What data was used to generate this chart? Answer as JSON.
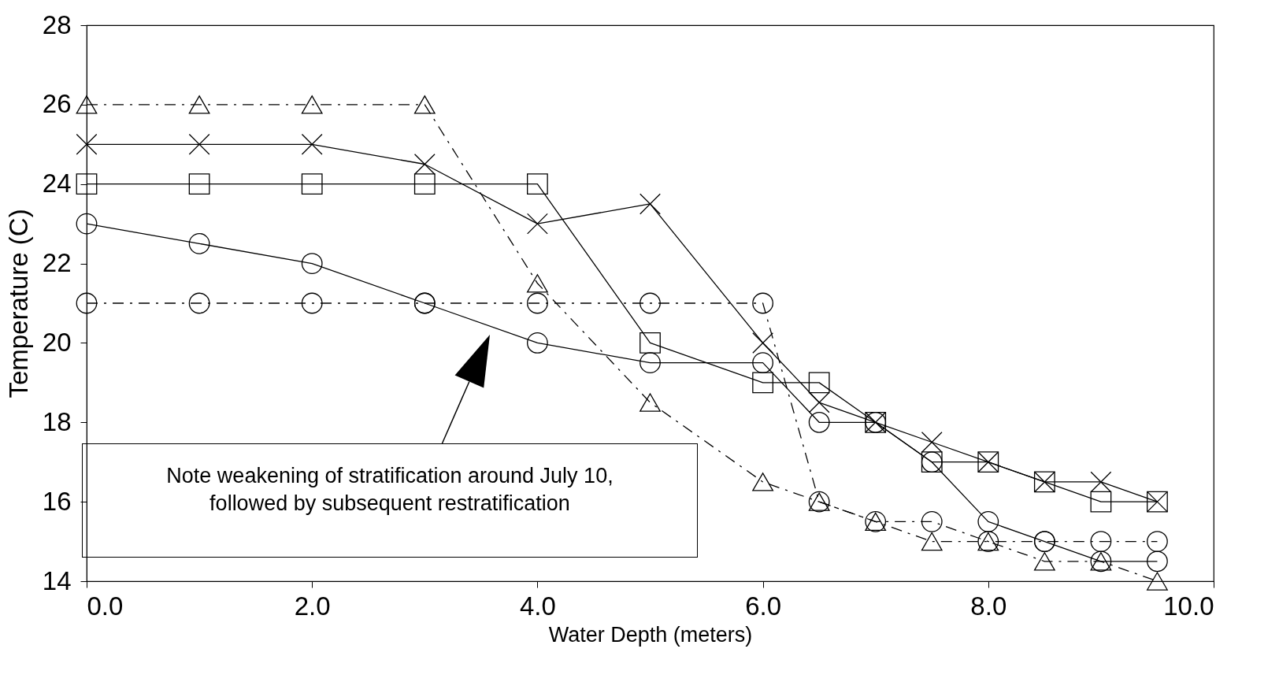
{
  "chart_data": {
    "type": "line",
    "xlabel": "Water Depth (meters)",
    "ylabel": "Temperature (C)",
    "x": [
      0,
      1,
      2,
      3,
      4,
      5,
      6,
      6.5,
      7,
      7.5,
      8,
      8.5,
      9,
      9.5
    ],
    "xlim": [
      0,
      10
    ],
    "xticks": [
      {
        "value": 0,
        "label": "0.0"
      },
      {
        "value": 2,
        "label": "2.0"
      },
      {
        "value": 4,
        "label": "4.0"
      },
      {
        "value": 6,
        "label": "6.0"
      },
      {
        "value": 8,
        "label": "8.0"
      },
      {
        "value": 10,
        "label": "10.0"
      }
    ],
    "ylim": [
      14,
      28
    ],
    "yticks": [
      14,
      16,
      18,
      20,
      22,
      24,
      26,
      28
    ],
    "grid": false,
    "series": [
      {
        "color": "#000000",
        "marker": "triangle",
        "line_style": "dashed",
        "values": [
          26,
          26,
          26,
          26,
          21.5,
          18.5,
          16.5,
          16,
          15.5,
          15,
          15,
          14.5,
          14.5,
          14
        ]
      },
      {
        "color": "#000000",
        "marker": "circle",
        "line_style": "dashed",
        "values": [
          21,
          21,
          21,
          21,
          21,
          21,
          21,
          16,
          15.5,
          15.5,
          15,
          15,
          15,
          15
        ]
      },
      {
        "color": "#000000",
        "marker": "square",
        "line_style": "solid",
        "values": [
          24,
          24,
          24,
          24,
          24,
          20,
          19,
          19,
          18,
          17,
          17,
          16.5,
          16,
          16
        ]
      },
      {
        "color": "#000000",
        "marker": "cross",
        "line_style": "solid",
        "values": [
          25,
          25,
          25,
          24.5,
          23,
          23.5,
          20,
          18.5,
          18,
          17.5,
          17,
          16.5,
          16.5,
          16
        ]
      },
      {
        "color": "#000000",
        "marker": "circle",
        "line_style": "solid",
        "values": [
          23,
          22.5,
          22,
          21,
          20,
          19.5,
          19.5,
          18,
          18,
          17,
          15.5,
          15,
          14.5,
          14.5
        ]
      }
    ],
    "annotations": [
      "Note weakening of stratification around July 10, followed by subsequent restratification"
    ]
  }
}
